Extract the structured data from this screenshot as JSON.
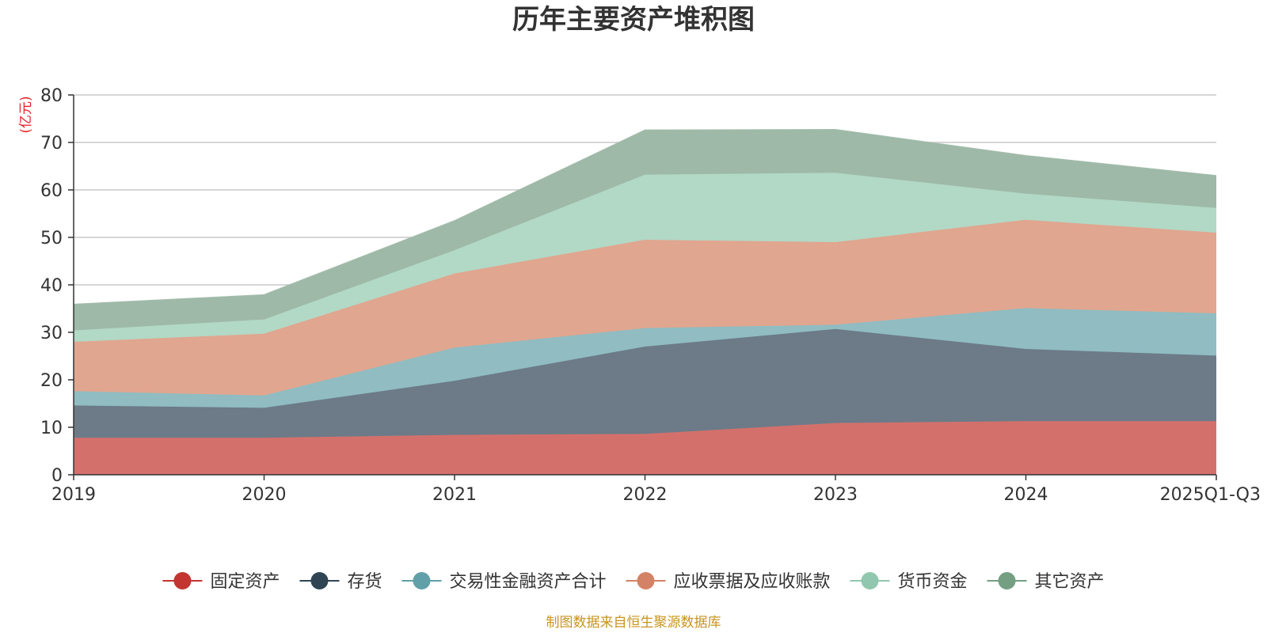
{
  "chart_data": {
    "type": "area",
    "stacked": true,
    "title": "历年主要资产堆积图",
    "unit_label": "(亿元)",
    "categories": [
      "2019",
      "2020",
      "2021",
      "2022",
      "2023",
      "2024",
      "2025Q1-Q3"
    ],
    "ylim": [
      0,
      80
    ],
    "yticks": [
      0,
      10,
      20,
      30,
      40,
      50,
      60,
      70,
      80
    ],
    "grid": true,
    "legend_position": "bottom",
    "series": [
      {
        "name": "固定资产",
        "color": "#c23531",
        "area_color": "#d4706c",
        "values": [
          7.8,
          7.8,
          8.4,
          8.6,
          10.9,
          11.3,
          11.3
        ]
      },
      {
        "name": "存货",
        "color": "#2f4554",
        "area_color": "#6c7b87",
        "values": [
          6.8,
          6.3,
          11.4,
          18.4,
          19.8,
          15.2,
          13.8
        ]
      },
      {
        "name": "交易性金融资产合计",
        "color": "#61a0a8",
        "area_color": "#90bcc2",
        "values": [
          3.0,
          2.6,
          7.0,
          3.9,
          0.9,
          8.6,
          8.9
        ]
      },
      {
        "name": "应收票据及应收账款",
        "color": "#d48265",
        "area_color": "#e0a68f",
        "values": [
          10.4,
          13.0,
          15.6,
          18.6,
          17.4,
          18.6,
          17.0
        ]
      },
      {
        "name": "货币资金",
        "color": "#91c7ae",
        "area_color": "#b2d8c6",
        "values": [
          2.4,
          3.0,
          4.9,
          13.7,
          14.6,
          5.5,
          5.2
        ]
      },
      {
        "name": "其它资产",
        "color": "#749f83",
        "area_color": "#9eb9a7",
        "values": [
          5.5,
          5.2,
          6.2,
          9.4,
          9.1,
          8.0,
          6.8
        ]
      }
    ]
  },
  "footer": {
    "source": "制图数据来自恒生聚源数据库"
  }
}
